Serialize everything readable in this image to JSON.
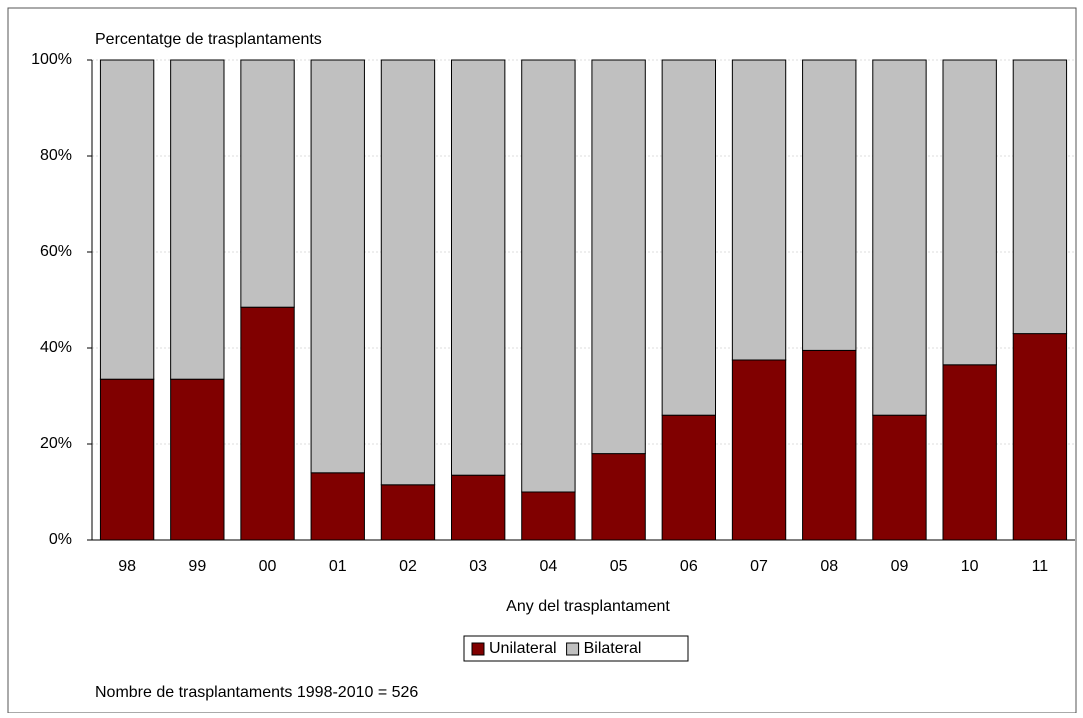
{
  "chart_data": {
    "type": "stacked_bar",
    "y_axis_title": "Percentatge de trasplantaments",
    "x_axis_title": "Any del trasplantament",
    "footnote": "Nombre de trasplantaments 1998-2010 = 526",
    "categories": [
      "98",
      "99",
      "00",
      "01",
      "02",
      "03",
      "04",
      "05",
      "06",
      "07",
      "08",
      "09",
      "10",
      "11"
    ],
    "series": [
      {
        "name": "Unilateral",
        "color": "#800000",
        "values": [
          33.5,
          33.5,
          48.5,
          14,
          11.5,
          13.5,
          10,
          18,
          26,
          37.5,
          39.5,
          26,
          36.5,
          43
        ]
      },
      {
        "name": "Bilateral",
        "color": "#c0c0c0",
        "values": [
          66.5,
          66.5,
          51.5,
          86,
          88.5,
          86.5,
          90,
          82,
          74,
          62.5,
          60.5,
          74,
          63.5,
          57
        ]
      }
    ],
    "ylim": [
      0,
      100
    ],
    "yticks": [
      {
        "value": 0,
        "label": "0%"
      },
      {
        "value": 20,
        "label": "20%"
      },
      {
        "value": 40,
        "label": "40%"
      },
      {
        "value": 60,
        "label": "60%"
      },
      {
        "value": 80,
        "label": "80%"
      },
      {
        "value": 100,
        "label": "100%"
      }
    ],
    "grid": true,
    "legend": "bottom"
  }
}
